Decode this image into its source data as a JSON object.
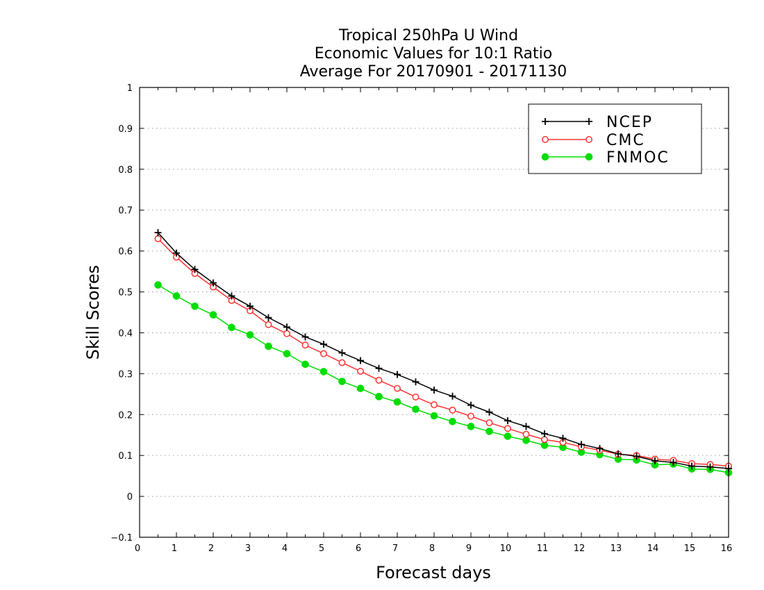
{
  "chart_data": {
    "type": "line",
    "title_lines": [
      "Tropical 250hPa U Wind",
      "Economic Values for 10:1 Ratio",
      "Average For 20170901 - 20171130"
    ],
    "xlabel": "Forecast days",
    "ylabel": "Skill Scores",
    "xlim": [
      0,
      16
    ],
    "ylim": [
      -0.1,
      1
    ],
    "x_ticks": [
      0,
      1,
      2,
      3,
      4,
      5,
      6,
      7,
      8,
      9,
      10,
      11,
      12,
      13,
      14,
      15,
      16
    ],
    "y_ticks": [
      -0.1,
      0,
      0.1,
      0.2,
      0.3,
      0.4,
      0.5,
      0.6,
      0.7,
      0.8,
      0.9,
      1
    ],
    "y_tick_labels": [
      "−0.1",
      "0",
      "0.1",
      "0.2",
      "0.3",
      "0.4",
      "0.5",
      "0.6",
      "0.7",
      "0.8",
      "0.9",
      "1"
    ],
    "grid": "horizontal dotted",
    "legend_position": "top-right",
    "x": [
      0.5,
      1,
      1.5,
      2,
      2.5,
      3,
      3.5,
      4,
      4.5,
      5,
      5.5,
      6,
      6.5,
      7,
      7.5,
      8,
      8.5,
      9,
      9.5,
      10,
      10.5,
      11,
      11.5,
      12,
      12.5,
      13,
      13.5,
      14,
      14.5,
      15,
      15.5,
      16
    ],
    "series": [
      {
        "name": "NCEP",
        "color": "#000000",
        "marker": "plus",
        "values": [
          0.645,
          0.595,
          0.555,
          0.522,
          0.49,
          0.465,
          0.437,
          0.414,
          0.39,
          0.372,
          0.351,
          0.332,
          0.313,
          0.298,
          0.28,
          0.26,
          0.245,
          0.223,
          0.206,
          0.185,
          0.171,
          0.153,
          0.142,
          0.127,
          0.117,
          0.104,
          0.098,
          0.087,
          0.083,
          0.074,
          0.072,
          0.068
        ]
      },
      {
        "name": "CMC",
        "color": "#ff3030",
        "marker": "open-circle",
        "values": [
          0.63,
          0.585,
          0.545,
          0.512,
          0.479,
          0.454,
          0.42,
          0.398,
          0.37,
          0.349,
          0.327,
          0.306,
          0.284,
          0.264,
          0.243,
          0.224,
          0.211,
          0.196,
          0.18,
          0.166,
          0.152,
          0.139,
          0.132,
          0.121,
          0.113,
          0.103,
          0.1,
          0.091,
          0.088,
          0.08,
          0.078,
          0.074
        ]
      },
      {
        "name": "FNMOC",
        "color": "#00dd00",
        "marker": "filled-circle",
        "values": [
          0.517,
          0.49,
          0.465,
          0.444,
          0.413,
          0.395,
          0.367,
          0.349,
          0.323,
          0.305,
          0.281,
          0.264,
          0.244,
          0.231,
          0.213,
          0.197,
          0.183,
          0.171,
          0.159,
          0.147,
          0.137,
          0.125,
          0.12,
          0.108,
          0.102,
          0.091,
          0.089,
          0.077,
          0.079,
          0.067,
          0.066,
          0.058
        ]
      }
    ]
  }
}
